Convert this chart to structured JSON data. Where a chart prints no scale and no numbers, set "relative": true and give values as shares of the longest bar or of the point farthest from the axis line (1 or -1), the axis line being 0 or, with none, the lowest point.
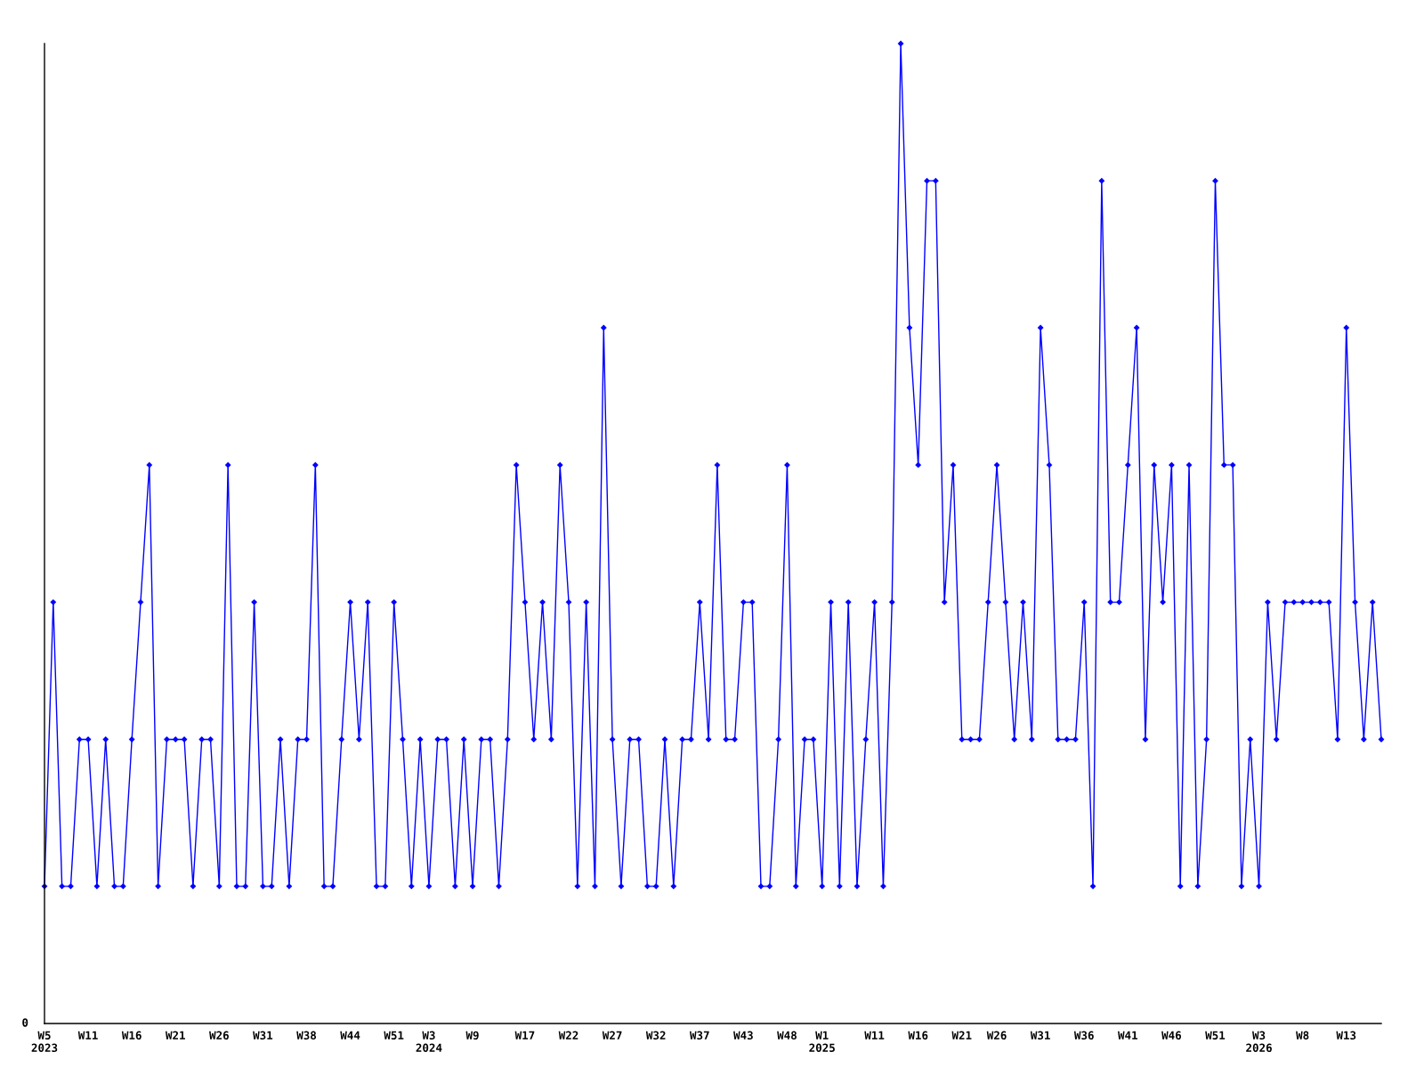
{
  "chart_data": {
    "type": "line",
    "relative": true,
    "marker": "diamond",
    "line_style": "solid",
    "grid": false,
    "legend": false,
    "annotations": [
      "0"
    ],
    "categories": [
      "W5\n2023",
      null,
      null,
      null,
      null,
      "W11",
      null,
      null,
      null,
      null,
      "W16",
      null,
      null,
      null,
      null,
      "W21",
      null,
      null,
      null,
      null,
      "W26",
      null,
      null,
      null,
      null,
      "W31",
      null,
      null,
      null,
      null,
      "W38",
      null,
      null,
      null,
      null,
      "W44",
      null,
      null,
      null,
      null,
      "W51",
      null,
      null,
      null,
      "W3\n2024",
      null,
      null,
      null,
      null,
      "W9",
      null,
      null,
      null,
      null,
      null,
      "W17",
      null,
      null,
      null,
      null,
      "W22",
      null,
      null,
      null,
      null,
      "W27",
      null,
      null,
      null,
      null,
      "W32",
      null,
      null,
      null,
      null,
      "W37",
      null,
      null,
      null,
      null,
      "W43",
      null,
      null,
      null,
      null,
      "W48",
      null,
      null,
      null,
      "W1\n2025",
      null,
      null,
      null,
      null,
      null,
      "W11",
      null,
      null,
      null,
      null,
      "W16",
      null,
      null,
      null,
      null,
      "W21",
      null,
      null,
      null,
      "W26",
      null,
      null,
      null,
      null,
      "W31",
      null,
      null,
      null,
      null,
      "W36",
      null,
      null,
      null,
      null,
      "W41",
      null,
      null,
      null,
      null,
      "W46",
      null,
      null,
      null,
      null,
      "W51",
      null,
      null,
      null,
      null,
      "W3\n2026",
      null,
      null,
      null,
      null,
      "W8",
      null,
      null,
      null,
      null,
      "W13",
      null,
      null,
      null,
      null
    ],
    "series": [
      {
        "color": "#0000ff",
        "values": [
          0.14,
          0.43,
          0.14,
          0.14,
          0.29,
          0.29,
          0.14,
          0.29,
          0.14,
          0.14,
          0.29,
          0.43,
          0.57,
          0.14,
          0.29,
          0.29,
          0.29,
          0.14,
          0.29,
          0.29,
          0.14,
          0.57,
          0.14,
          0.14,
          0.43,
          0.14,
          0.14,
          0.29,
          0.14,
          0.29,
          0.29,
          0.57,
          0.14,
          0.14,
          0.29,
          0.43,
          0.29,
          0.43,
          0.14,
          0.14,
          0.43,
          0.29,
          0.14,
          0.29,
          0.14,
          0.29,
          0.29,
          0.14,
          0.29,
          0.14,
          0.29,
          0.29,
          0.14,
          0.29,
          0.57,
          0.43,
          0.29,
          0.43,
          0.29,
          0.57,
          0.43,
          0.14,
          0.43,
          0.14,
          0.71,
          0.29,
          0.14,
          0.29,
          0.29,
          0.14,
          0.14,
          0.29,
          0.14,
          0.29,
          0.29,
          0.43,
          0.29,
          0.57,
          0.29,
          0.29,
          0.43,
          0.43,
          0.14,
          0.14,
          0.29,
          0.57,
          0.14,
          0.29,
          0.29,
          0.14,
          0.43,
          0.14,
          0.43,
          0.14,
          0.29,
          0.43,
          0.14,
          0.43,
          1,
          0.71,
          0.57,
          0.86,
          0.86,
          0.43,
          0.57,
          0.29,
          0.29,
          0.29,
          0.43,
          0.57,
          0.43,
          0.29,
          0.43,
          0.29,
          0.71,
          0.57,
          0.29,
          0.29,
          0.29,
          0.43,
          0.14,
          0.86,
          0.43,
          0.43,
          0.57,
          0.71,
          0.29,
          0.57,
          0.43,
          0.57,
          0.14,
          0.57,
          0.14,
          0.29,
          0.86,
          0.57,
          0.57,
          0.14,
          0.29,
          0.14,
          0.43,
          0.29,
          0.43,
          0.43,
          0.43,
          0.43,
          0.43,
          0.43,
          0.29,
          0.71,
          0.43,
          0.29,
          0.43,
          0.29
        ]
      }
    ]
  }
}
